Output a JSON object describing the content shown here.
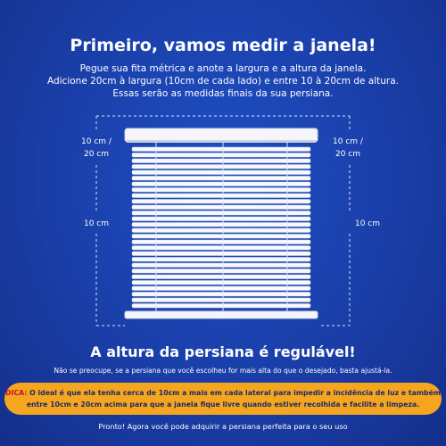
{
  "title": "Primeiro, vamos medir a janela!",
  "intro": [
    "Pegue sua fita métrica e anote a largura e a altura da janela.",
    "Adicione 20cm à largura (10cm de cada lado) e entre 10 à 20cm de altura.",
    "Essas serão as medidas finais da sua persiana."
  ],
  "measures": {
    "left_top": [
      "10 cm /",
      "20 cm"
    ],
    "right_top": [
      "10 cm /",
      "20 cm"
    ],
    "left_side": "10 cm",
    "right_side": "10 cm"
  },
  "adjustable": {
    "heading": "A altura da persiana é regulável!",
    "note": "Não se preocupe, se a persiana que você escolheu for mais alta do que o desejado, basta ajustá-la."
  },
  "tip": {
    "label": "DICA:",
    "lines": [
      "O ideal é que ela tenha cerca de 10cm a mais em cada lateral para impedir a incidência de luz e também",
      "entre 10cm e 20cm acima para que a janela fique livre quando estiver recolhida e facilite a limpeza."
    ]
  },
  "footer": "Pronto! Agora você pode adquirir a persiana perfeita para o seu uso"
}
